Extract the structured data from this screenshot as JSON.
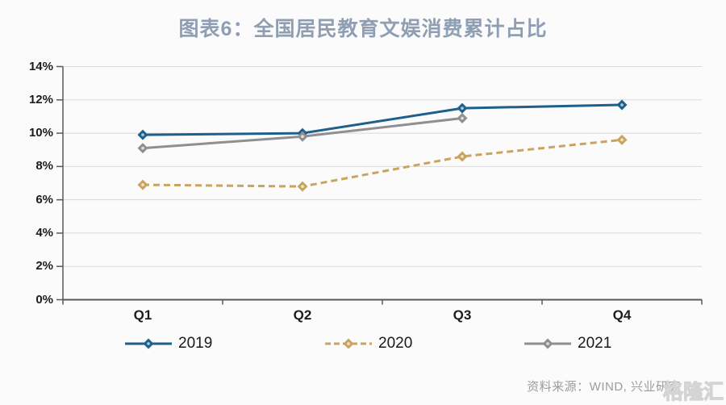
{
  "header": {
    "title": "图表6：全国居民教育文娱消费累计占比",
    "title_color": "#8e9eb3"
  },
  "chart_data": {
    "type": "line",
    "title": "图表6：全国居民教育文娱消费累计占比",
    "categories": [
      "Q1",
      "Q2",
      "Q3",
      "Q4"
    ],
    "series": [
      {
        "name": "2019",
        "style": "solid",
        "color": "#1f5f8b",
        "marker": "diamond",
        "marker_center": "#a8c4da",
        "values": [
          9.9,
          10.0,
          11.5,
          11.7
        ]
      },
      {
        "name": "2020",
        "style": "dashed",
        "color": "#c9a45f",
        "marker": "diamond",
        "marker_center": "#f0e2c2",
        "values": [
          6.9,
          6.8,
          8.6,
          9.6
        ]
      },
      {
        "name": "2021",
        "style": "solid",
        "color": "#8f8f8f",
        "marker": "diamond",
        "marker_center": "#dcdcdc",
        "values": [
          9.1,
          9.8,
          10.9,
          null
        ]
      }
    ],
    "y_axis": {
      "min": 0,
      "max": 14,
      "step": 2,
      "tick_labels": [
        "0%",
        "2%",
        "4%",
        "6%",
        "8%",
        "10%",
        "12%",
        "14%"
      ]
    },
    "grid": "horizontal",
    "legend_position": "bottom",
    "grid_color": "#d9d9d9",
    "axis_color": "#595959"
  },
  "footer": {
    "source": "资料来源：WIND, 兴业研究",
    "watermark": "格隆汇"
  }
}
